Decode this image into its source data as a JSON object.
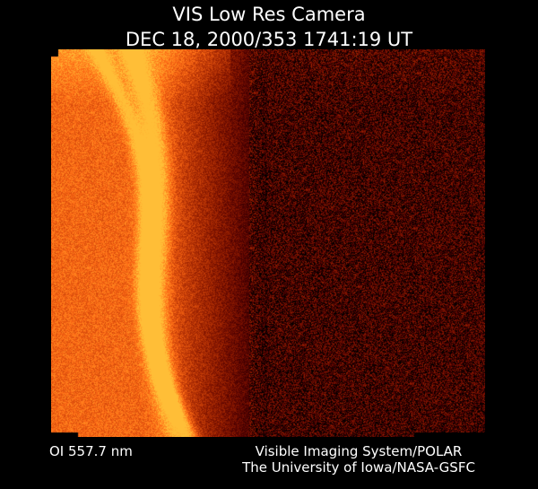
{
  "header": {
    "title": "VIS Low Res Camera",
    "timestamp": "DEC 18, 2000/353 1741:19 UT"
  },
  "footer": {
    "filter": "OI  557.7 nm",
    "instrument": "Visible Imaging System/POLAR",
    "credit": "The University of Iowa/NASA-GSFC"
  },
  "image": {
    "colormap": [
      "#000000",
      "#5a1a00",
      "#b84a00",
      "#ff9a20"
    ]
  }
}
